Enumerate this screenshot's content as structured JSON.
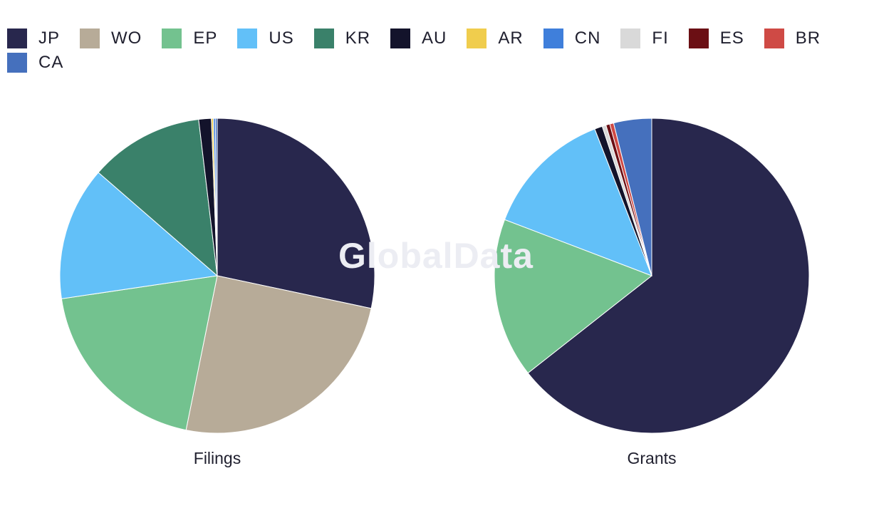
{
  "watermark": "GlobalData",
  "legend": [
    {
      "label": "JP",
      "color": "#28274d"
    },
    {
      "label": "WO",
      "color": "#b7ab98"
    },
    {
      "label": "EP",
      "color": "#73c28f"
    },
    {
      "label": "US",
      "color": "#62c0f8"
    },
    {
      "label": "KR",
      "color": "#3a816a"
    },
    {
      "label": "AU",
      "color": "#13132b"
    },
    {
      "label": "AR",
      "color": "#f0cd4d"
    },
    {
      "label": "CN",
      "color": "#3f7fdb"
    },
    {
      "label": "FI",
      "color": "#d9d9d9"
    },
    {
      "label": "ES",
      "color": "#6b0f14"
    },
    {
      "label": "BR",
      "color": "#cf4a45"
    },
    {
      "label": "CA",
      "color": "#4570bd"
    }
  ],
  "chart_data": [
    {
      "type": "pie",
      "title": "Filings",
      "labels": [
        "JP",
        "WO",
        "EP",
        "US",
        "KR",
        "AU",
        "AR",
        "CN",
        "CA"
      ],
      "values": [
        28.5,
        25.0,
        19.6,
        13.8,
        11.8,
        1.3,
        0.2,
        0.2,
        0.2
      ]
    },
    {
      "type": "pie",
      "title": "Grants",
      "labels": [
        "JP",
        "EP",
        "US",
        "AU",
        "FI",
        "ES",
        "BR",
        "CA"
      ],
      "values": [
        64.4,
        16.4,
        13.3,
        0.8,
        0.4,
        0.4,
        0.4,
        3.9
      ]
    }
  ]
}
